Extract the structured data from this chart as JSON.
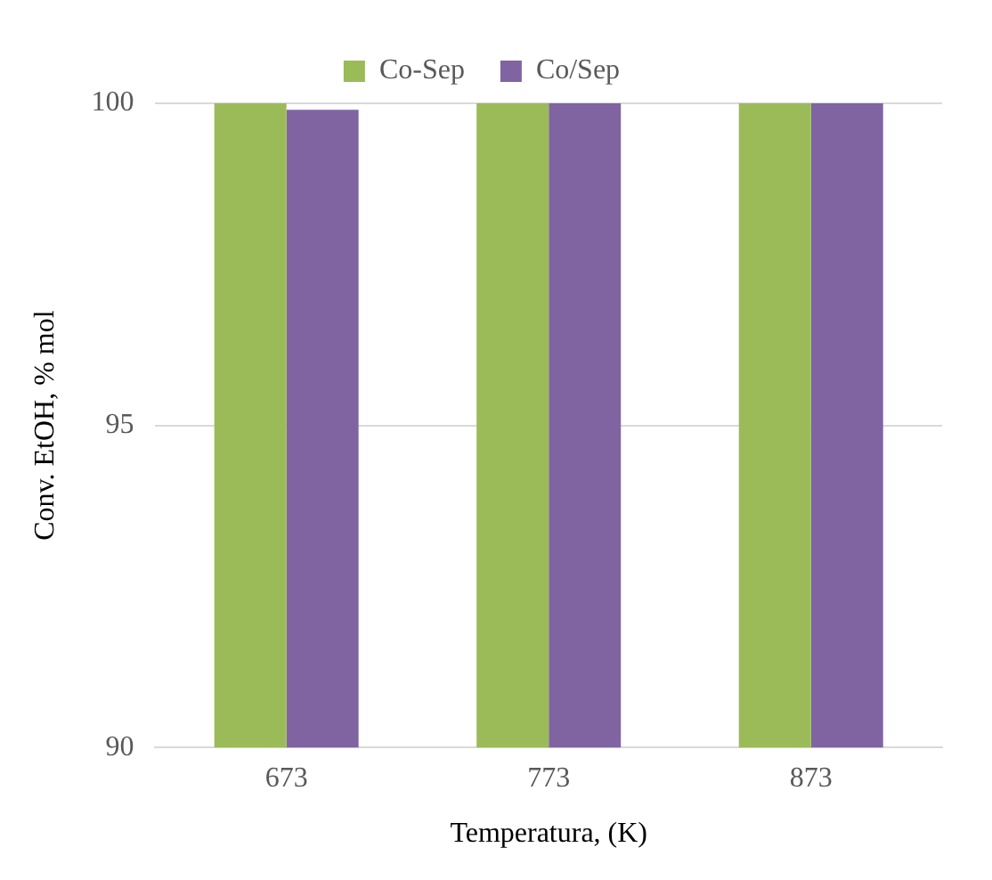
{
  "chart_data": {
    "type": "bar",
    "xlabel": "Temperatura, (K)",
    "ylabel": "Conv. EtOH, % mol",
    "categories": [
      "673",
      "773",
      "873"
    ],
    "series": [
      {
        "name": "Co-Sep",
        "color": "#9bbb59",
        "values": [
          100,
          100,
          100
        ]
      },
      {
        "name": "Co/Sep",
        "color": "#8064a2",
        "values": [
          99.9,
          100,
          100
        ]
      }
    ],
    "ylim": [
      90,
      100
    ],
    "yticks": [
      90,
      95,
      100
    ],
    "grid": "y",
    "legend": "top"
  }
}
